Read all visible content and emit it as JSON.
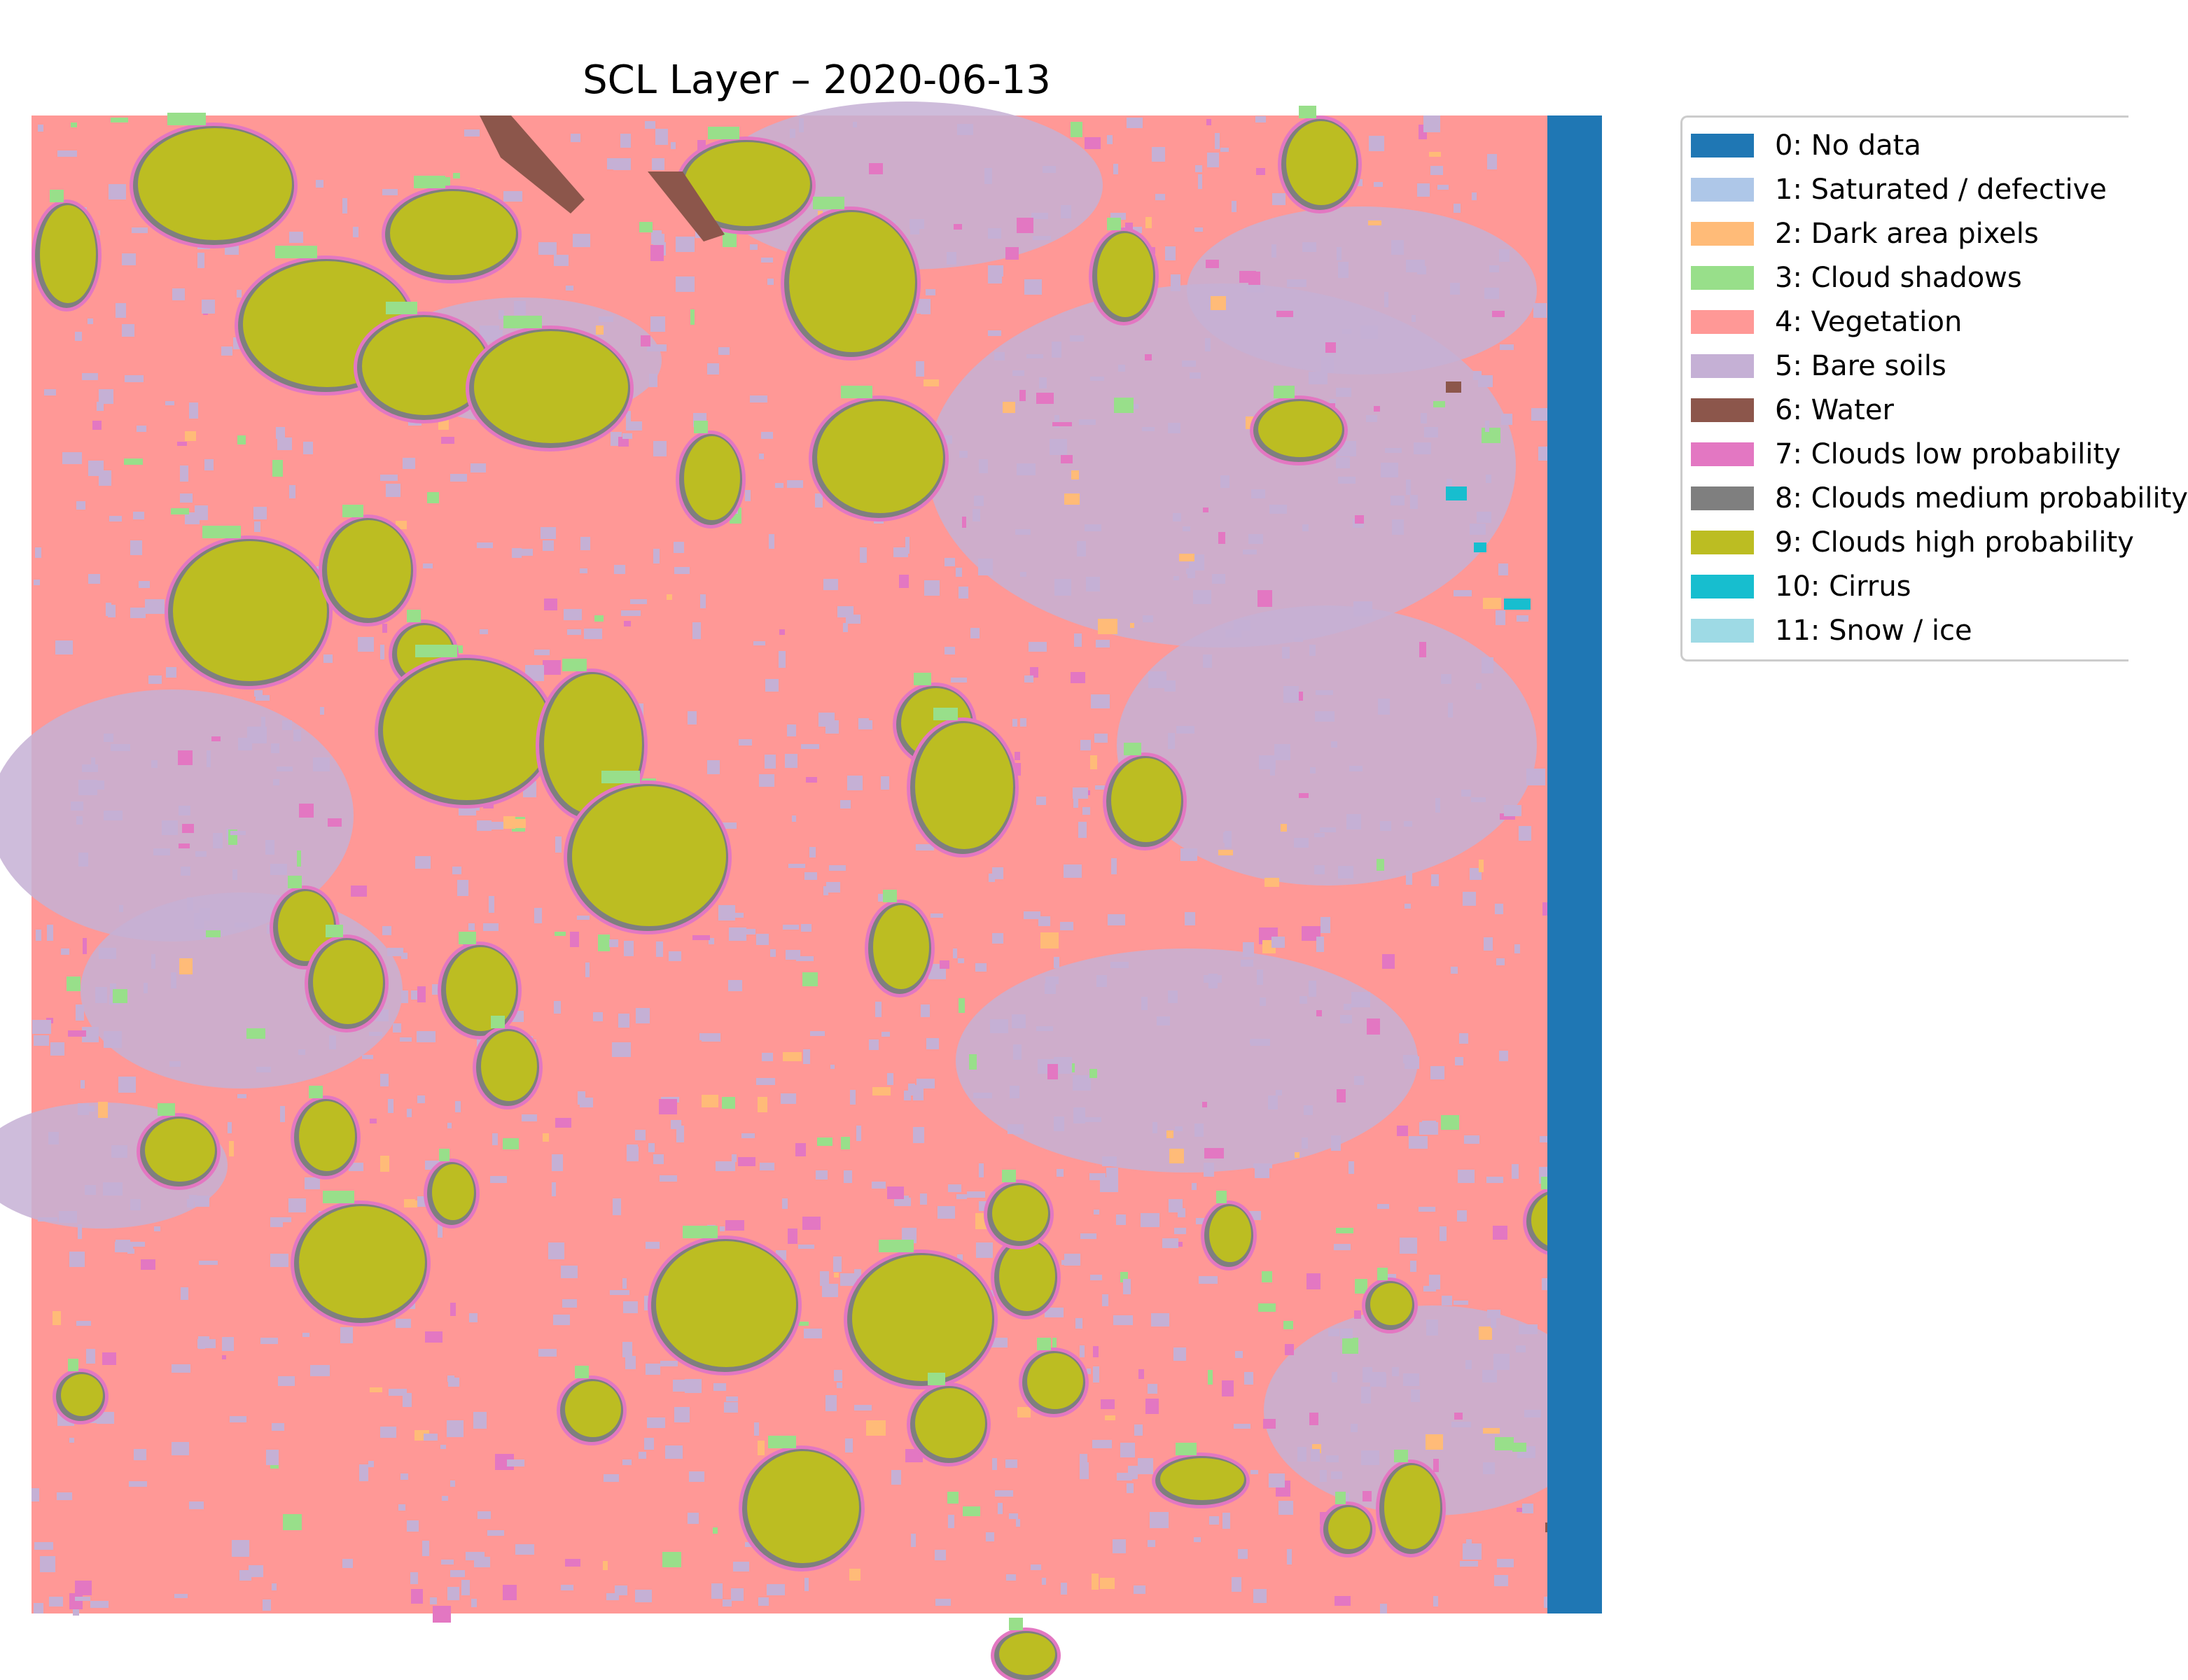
{
  "chart_data": {
    "type": "heatmap",
    "title": "SCL Layer – 2020-06-13",
    "xlabel": "",
    "ylabel": "",
    "axes_visible": false,
    "legend_placement": "outside-right",
    "dominant_class": "4: Vegetation",
    "classes": [
      {
        "code": 0,
        "label": "0: No data",
        "color": "#1f77b4"
      },
      {
        "code": 1,
        "label": "1: Saturated / defective",
        "color": "#aec7e8"
      },
      {
        "code": 2,
        "label": "2: Dark area pixels",
        "color": "#ffbb78"
      },
      {
        "code": 3,
        "label": "3: Cloud shadows",
        "color": "#98df8a"
      },
      {
        "code": 4,
        "label": "4: Vegetation",
        "color": "#ff9896"
      },
      {
        "code": 5,
        "label": "5: Bare soils",
        "color": "#c5b0d5"
      },
      {
        "code": 6,
        "label": "6: Water",
        "color": "#8c564b"
      },
      {
        "code": 7,
        "label": "7: Clouds low probability",
        "color": "#e377c2"
      },
      {
        "code": 8,
        "label": "8: Clouds medium probability",
        "color": "#7f7f7f"
      },
      {
        "code": 9,
        "label": "9: Clouds high probability",
        "color": "#bcbd22"
      },
      {
        "code": 10,
        "label": "10: Cirrus",
        "color": "#17becf"
      },
      {
        "code": 11,
        "label": "11: Snow / ice",
        "color": "#9edae5"
      }
    ]
  }
}
